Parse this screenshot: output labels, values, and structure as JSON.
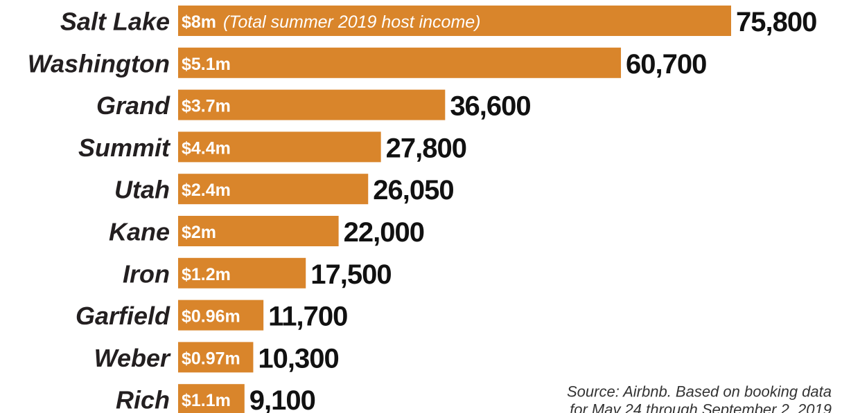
{
  "chart_data": {
    "type": "bar",
    "orientation": "horizontal",
    "color": "#d9852b",
    "categories": [
      "Salt Lake",
      "Washington",
      "Grand",
      "Summit",
      "Utah",
      "Kane",
      "Iron",
      "Garfield",
      "Weber",
      "Rich"
    ],
    "values": [
      75800,
      60700,
      36600,
      27800,
      26050,
      22000,
      17500,
      11700,
      10300,
      9100
    ],
    "value_labels": [
      "75,800",
      "60,700",
      "36,600",
      "27,800",
      "26,050",
      "22,000",
      "17,500",
      "11,700",
      "10,300",
      "9,100"
    ],
    "income_labels": [
      "$8m",
      "$5.1m",
      "$3.7m",
      "$4.4m",
      "$2.4m",
      "$2m",
      "$1.2m",
      "$0.96m",
      "$0.97m",
      "$1.1m"
    ],
    "annotation": "(Total summer 2019 host income)",
    "source": [
      "Source: Airbnb. Based on booking data",
      "for May 24 through September 2, 2019"
    ]
  }
}
